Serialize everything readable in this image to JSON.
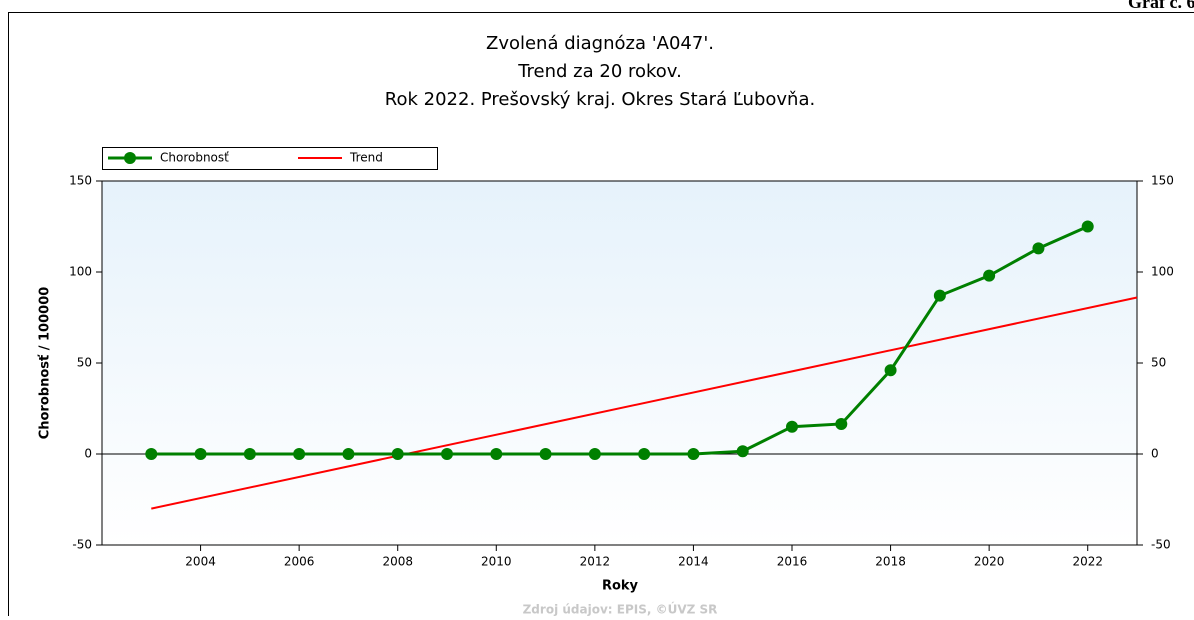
{
  "header": "Graf č. 6",
  "chart_data": {
    "type": "line",
    "title": [
      "Zvolená diagnóza 'A047'.",
      "Trend za 20 rokov.",
      "Rok 2022. Prešovský kraj. Okres Stará Ľubovňa."
    ],
    "x_label": "Roky",
    "y_label": "Chorobnosť / 100000",
    "x": [
      2003,
      2004,
      2005,
      2006,
      2007,
      2008,
      2009,
      2010,
      2011,
      2012,
      2013,
      2014,
      2015,
      2016,
      2017,
      2018,
      2019,
      2020,
      2021,
      2022
    ],
    "series": [
      {
        "name": "Chorobnosť",
        "color": "#008000",
        "values": [
          0,
          0,
          0,
          0,
          0,
          0,
          0,
          0,
          0,
          0,
          0,
          0,
          1.5,
          15,
          16.5,
          46,
          87,
          98,
          113,
          125
        ]
      },
      {
        "name": "Trend",
        "color": "#ff0000",
        "x": [
          2003,
          2023
        ],
        "values": [
          -30,
          86
        ]
      }
    ],
    "xlim": [
      2002,
      2023
    ],
    "xticks": [
      2004,
      2006,
      2008,
      2010,
      2012,
      2014,
      2016,
      2018,
      2020,
      2022
    ],
    "ylim": [
      -50,
      150
    ],
    "yticks": [
      -50,
      0,
      50,
      100,
      150
    ],
    "y2lim": [
      -50,
      150
    ],
    "y2ticks": [
      -50,
      0,
      50,
      100,
      150
    ],
    "legend": "top-left",
    "source": "Zdroj údajov: EPIS, ©ÚVZ SR"
  }
}
